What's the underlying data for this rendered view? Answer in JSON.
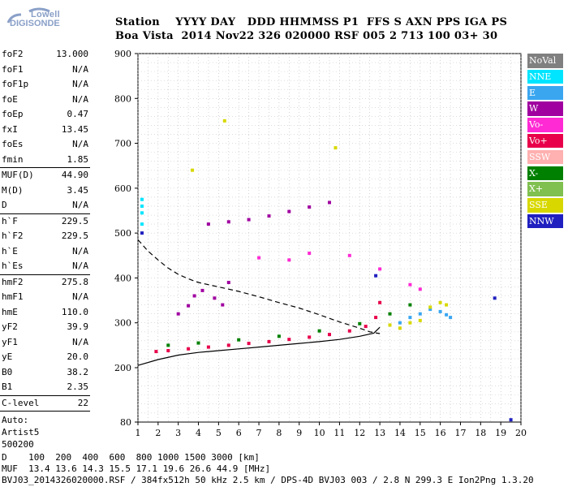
{
  "logo": {
    "line1": "Lowell",
    "line2": "DIGISONDE"
  },
  "header": {
    "labels": [
      "Station",
      "YYYY",
      "DAY",
      "DDD",
      "HHMMSS",
      "P1",
      "FFS",
      "S",
      "AXN",
      "PPS",
      "IGA",
      "PS"
    ],
    "values": [
      "Boa Vista",
      "2014",
      "Nov22",
      "326",
      "020000",
      "RSF",
      "005",
      "2",
      "713",
      "100",
      "03+",
      "30"
    ],
    "line1": "Station    YYYY DAY   DDD HHMMSS P1  FFS S AXN PPS IGA PS",
    "line2": "Boa Vista  2014 Nov22 326 020000 RSF 005 2 713 100 03+ 30"
  },
  "params": {
    "group1": [
      {
        "name": "foF2",
        "value": "13.000"
      },
      {
        "name": "foF1",
        "value": "N/A"
      },
      {
        "name": "foF1p",
        "value": "N/A"
      },
      {
        "name": "foE",
        "value": "N/A"
      },
      {
        "name": "foEp",
        "value": "0.47"
      },
      {
        "name": "fxI",
        "value": "13.45"
      },
      {
        "name": "foEs",
        "value": "N/A"
      },
      {
        "name": "fmin",
        "value": "1.85"
      }
    ],
    "group2": [
      {
        "name": "MUF(D)",
        "value": "44.90"
      },
      {
        "name": "M(D)",
        "value": "3.45"
      },
      {
        "name": "D",
        "value": "N/A"
      }
    ],
    "group3": [
      {
        "name": "h`F",
        "value": "229.5"
      },
      {
        "name": "h`F2",
        "value": "229.5"
      },
      {
        "name": "h`E",
        "value": "N/A"
      },
      {
        "name": "h`Es",
        "value": "N/A"
      }
    ],
    "group4": [
      {
        "name": "hmF2",
        "value": "275.8"
      },
      {
        "name": "hmF1",
        "value": "N/A"
      },
      {
        "name": "hmE",
        "value": "110.0"
      },
      {
        "name": "yF2",
        "value": "39.9"
      },
      {
        "name": "yF1",
        "value": "N/A"
      },
      {
        "name": "yE",
        "value": "20.0"
      },
      {
        "name": "B0",
        "value": "38.2"
      },
      {
        "name": "B1",
        "value": "2.35"
      }
    ],
    "group5": [
      {
        "name": "C-level",
        "value": "22"
      }
    ],
    "auto": [
      "Auto:",
      "Artist5",
      "500200"
    ]
  },
  "legend": [
    {
      "label": "NoVal",
      "color": "#808080"
    },
    {
      "label": "NNE",
      "color": "#00e5ff"
    },
    {
      "label": "E",
      "color": "#3aa6f0"
    },
    {
      "label": "W",
      "color": "#a000a0"
    },
    {
      "label": "Vo-",
      "color": "#ff2ad4"
    },
    {
      "label": "Vo+",
      "color": "#e8004a"
    },
    {
      "label": "SSW",
      "color": "#ffb0b0"
    },
    {
      "label": "X-",
      "color": "#008000"
    },
    {
      "label": "X+",
      "color": "#80c050"
    },
    {
      "label": "SSE",
      "color": "#d8d800"
    },
    {
      "label": "NNW",
      "color": "#2020c0"
    }
  ],
  "footer": {
    "line1": "D    100  200  400  600  800 1000 1500 3000 [km]",
    "line2": "MUF  13.4 13.6 14.3 15.5 17.1 19.6 26.6 44.9 [MHz]",
    "line3": "BVJ03_2014326020000.RSF / 384fx512h 50 kHz 2.5 km / DPS-4D BVJ03 003 / 2.8 N 299.3 E Ion2Png 1.3.20"
  },
  "chart_data": {
    "type": "scatter",
    "title": "",
    "xlabel": "",
    "ylabel": "",
    "xlim": [
      1,
      20
    ],
    "ylim": [
      80,
      900
    ],
    "x_ticks": [
      1,
      2,
      3,
      4,
      5,
      6,
      7,
      8,
      9,
      10,
      11,
      12,
      13,
      14,
      15,
      16,
      17,
      18,
      19,
      20
    ],
    "y_ticks": [
      80,
      200,
      300,
      400,
      500,
      600,
      700,
      800,
      900
    ],
    "grid": true,
    "series": [
      {
        "name": "Vo+",
        "points": [
          [
            1.9,
            236
          ],
          [
            2.5,
            238
          ],
          [
            3.5,
            242
          ],
          [
            4.5,
            246
          ],
          [
            5.5,
            250
          ],
          [
            6.5,
            254
          ],
          [
            7.5,
            258
          ],
          [
            8.5,
            263
          ],
          [
            9.5,
            268
          ],
          [
            10.5,
            274
          ],
          [
            11.5,
            282
          ],
          [
            12.3,
            292
          ],
          [
            12.8,
            312
          ],
          [
            13.0,
            345
          ]
        ]
      },
      {
        "name": "W",
        "points": [
          [
            3.0,
            320
          ],
          [
            3.5,
            338
          ],
          [
            3.8,
            360
          ],
          [
            4.2,
            372
          ],
          [
            4.8,
            355
          ],
          [
            5.2,
            340
          ],
          [
            5.5,
            390
          ],
          [
            4.5,
            520
          ],
          [
            5.5,
            525
          ],
          [
            6.5,
            530
          ],
          [
            7.5,
            538
          ],
          [
            8.5,
            548
          ],
          [
            9.5,
            558
          ],
          [
            10.5,
            568
          ]
        ]
      },
      {
        "name": "X-",
        "points": [
          [
            2.5,
            250
          ],
          [
            4.0,
            255
          ],
          [
            6.0,
            262
          ],
          [
            8.0,
            270
          ],
          [
            10.0,
            282
          ],
          [
            12.0,
            298
          ],
          [
            13.5,
            320
          ],
          [
            14.5,
            340
          ]
        ]
      },
      {
        "name": "E",
        "points": [
          [
            14.0,
            300
          ],
          [
            14.5,
            312
          ],
          [
            15.0,
            320
          ],
          [
            15.5,
            330
          ],
          [
            16.0,
            325
          ],
          [
            16.3,
            318
          ],
          [
            16.5,
            312
          ]
        ]
      },
      {
        "name": "SSE",
        "points": [
          [
            13.5,
            295
          ],
          [
            14.0,
            288
          ],
          [
            14.5,
            300
          ],
          [
            15.0,
            305
          ],
          [
            15.5,
            335
          ],
          [
            16.0,
            345
          ],
          [
            16.3,
            340
          ],
          [
            5.3,
            750
          ],
          [
            3.7,
            640
          ],
          [
            10.8,
            690
          ]
        ]
      },
      {
        "name": "NNE",
        "points": [
          [
            1.2,
            520
          ],
          [
            1.2,
            545
          ],
          [
            1.2,
            560
          ],
          [
            1.2,
            575
          ]
        ]
      },
      {
        "name": "NNW",
        "points": [
          [
            1.2,
            500
          ],
          [
            12.8,
            405
          ],
          [
            18.7,
            355
          ],
          [
            19.5,
            85
          ]
        ]
      },
      {
        "name": "Vo-",
        "points": [
          [
            7.0,
            445
          ],
          [
            8.5,
            440
          ],
          [
            9.5,
            455
          ],
          [
            11.5,
            450
          ],
          [
            13.0,
            420
          ],
          [
            14.5,
            385
          ],
          [
            15.0,
            375
          ]
        ]
      }
    ],
    "profile_lines": [
      {
        "name": "virtual-height-trace",
        "style": "solid",
        "points": [
          [
            1.0,
            205
          ],
          [
            2.0,
            218
          ],
          [
            3.0,
            228
          ],
          [
            4.0,
            234
          ],
          [
            5.0,
            238
          ],
          [
            6.0,
            242
          ],
          [
            7.0,
            246
          ],
          [
            8.0,
            250
          ],
          [
            9.0,
            254
          ],
          [
            10.0,
            258
          ],
          [
            11.0,
            263
          ],
          [
            12.0,
            270
          ],
          [
            12.7,
            277
          ],
          [
            13.0,
            290
          ]
        ]
      },
      {
        "name": "true-height-profile",
        "style": "dashed",
        "points": [
          [
            1.0,
            485
          ],
          [
            1.5,
            460
          ],
          [
            2.0,
            440
          ],
          [
            2.5,
            422
          ],
          [
            3.0,
            408
          ],
          [
            3.5,
            398
          ],
          [
            4.0,
            390
          ],
          [
            5.0,
            380
          ],
          [
            6.0,
            370
          ],
          [
            7.0,
            358
          ],
          [
            8.0,
            345
          ],
          [
            9.0,
            333
          ],
          [
            10.0,
            318
          ],
          [
            11.0,
            302
          ],
          [
            12.0,
            288
          ],
          [
            12.5,
            280
          ],
          [
            13.0,
            276
          ]
        ]
      }
    ]
  }
}
